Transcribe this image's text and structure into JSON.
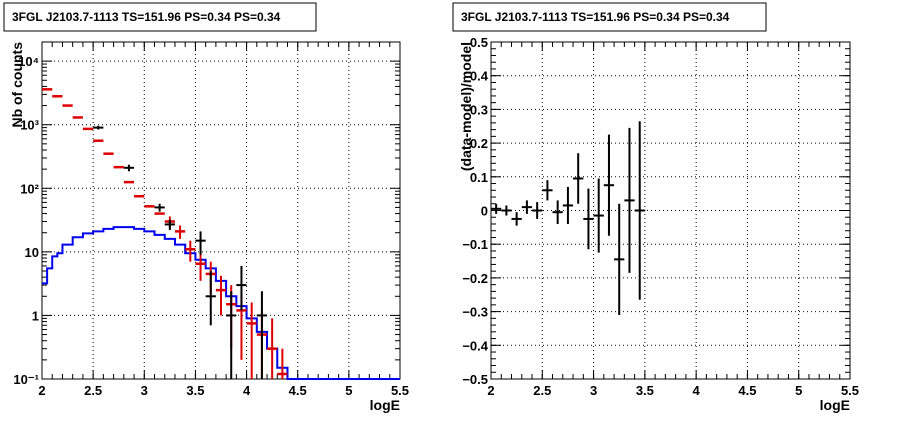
{
  "panels": [
    {
      "title": "3FGL J2103.7-1113 TS=151.96 PS=0.34 PS=0.34"
    },
    {
      "title": "3FGL J2103.7-1113 TS=151.96 PS=0.34 PS=0.34"
    }
  ],
  "chart_data": [
    {
      "type": "line",
      "title": "3FGL J2103.7-1113 TS=151.96 PS=0.34 PS=0.34",
      "xlabel": "logE",
      "ylabel": "Nb of counts",
      "xlim": [
        2,
        5.5
      ],
      "ylim": [
        0.1,
        20000
      ],
      "yscale": "log",
      "grid": true,
      "xticks": [
        "2",
        "2.5",
        "3",
        "3.5",
        "4",
        "4.5",
        "5",
        "5.5"
      ],
      "yticks": [
        {
          "value": 0.1,
          "label": "10⁻¹"
        },
        {
          "value": 1,
          "label": "1"
        },
        {
          "value": 10,
          "label": "10"
        },
        {
          "value": 100,
          "label": "10²"
        },
        {
          "value": 1000,
          "label": "10³"
        },
        {
          "value": 10000,
          "label": "10⁴"
        }
      ],
      "colors": {
        "data": "#000000",
        "model": "#dd0000",
        "component": "#0000ee"
      },
      "bin_width": 0.1,
      "data_points": [
        {
          "x": 2.55,
          "y": 900,
          "lo": 840,
          "hi": 960
        },
        {
          "x": 2.85,
          "y": 210,
          "lo": 185,
          "hi": 235
        },
        {
          "x": 3.15,
          "y": 50,
          "lo": 43,
          "hi": 57
        },
        {
          "x": 3.25,
          "y": 27,
          "lo": 22,
          "hi": 32
        },
        {
          "x": 3.55,
          "y": 15,
          "lo": 9,
          "hi": 21
        },
        {
          "x": 3.65,
          "y": 2,
          "lo": 0.7,
          "hi": 5
        },
        {
          "x": 3.85,
          "y": 1,
          "lo": 0.1,
          "hi": 2.4
        },
        {
          "x": 3.95,
          "y": 3,
          "lo": 1.2,
          "hi": 6
        },
        {
          "x": 4.15,
          "y": 1,
          "lo": 0.1,
          "hi": 2.4
        }
      ],
      "model": [
        {
          "x": 2.05,
          "y": 3600
        },
        {
          "x": 2.15,
          "y": 2800
        },
        {
          "x": 2.25,
          "y": 2000
        },
        {
          "x": 2.35,
          "y": 1300
        },
        {
          "x": 2.45,
          "y": 860
        },
        {
          "x": 2.55,
          "y": 560
        },
        {
          "x": 2.65,
          "y": 350
        },
        {
          "x": 2.75,
          "y": 215
        },
        {
          "x": 2.85,
          "y": 125
        },
        {
          "x": 2.95,
          "y": 75
        },
        {
          "x": 3.05,
          "y": 52
        },
        {
          "x": 3.15,
          "y": 40
        },
        {
          "x": 3.25,
          "y": 30,
          "lo": 24,
          "hi": 36
        },
        {
          "x": 3.35,
          "y": 21,
          "lo": 16,
          "hi": 26
        },
        {
          "x": 3.45,
          "y": 11,
          "lo": 7,
          "hi": 15
        },
        {
          "x": 3.55,
          "y": 6.5,
          "lo": 3.5,
          "hi": 9.5
        },
        {
          "x": 3.65,
          "y": 4.5,
          "lo": 2.2,
          "hi": 7
        },
        {
          "x": 3.75,
          "y": 2.5,
          "lo": 1,
          "hi": 4.2
        },
        {
          "x": 3.85,
          "y": 1.5,
          "lo": 0.3,
          "hi": 3
        },
        {
          "x": 3.95,
          "y": 1.2,
          "lo": 0.2,
          "hi": 2.4
        },
        {
          "x": 4.05,
          "y": 0.75,
          "lo": 0.1,
          "hi": 1.6
        },
        {
          "x": 4.15,
          "y": 0.5,
          "lo": 0.1,
          "hi": 1.2
        },
        {
          "x": 4.25,
          "y": 0.3,
          "lo": 0.1,
          "hi": 0.9
        },
        {
          "x": 4.35,
          "y": 0.12,
          "lo": 0.1,
          "hi": 0.3
        }
      ],
      "component_histogram": [
        {
          "x": 2.0,
          "y": 3.2
        },
        {
          "x": 2.05,
          "y": 5.5
        },
        {
          "x": 2.1,
          "y": 8.5
        },
        {
          "x": 2.15,
          "y": 9.5
        },
        {
          "x": 2.2,
          "y": 13
        },
        {
          "x": 2.3,
          "y": 17
        },
        {
          "x": 2.4,
          "y": 19.5
        },
        {
          "x": 2.5,
          "y": 21
        },
        {
          "x": 2.6,
          "y": 23
        },
        {
          "x": 2.7,
          "y": 24.5
        },
        {
          "x": 2.9,
          "y": 23
        },
        {
          "x": 3.0,
          "y": 21
        },
        {
          "x": 3.1,
          "y": 18.5
        },
        {
          "x": 3.2,
          "y": 16
        },
        {
          "x": 3.3,
          "y": 13
        },
        {
          "x": 3.4,
          "y": 9.5
        },
        {
          "x": 3.5,
          "y": 7.5
        },
        {
          "x": 3.6,
          "y": 5.5
        },
        {
          "x": 3.7,
          "y": 3.5
        },
        {
          "x": 3.8,
          "y": 2
        },
        {
          "x": 3.9,
          "y": 1.4
        },
        {
          "x": 4.0,
          "y": 0.9
        },
        {
          "x": 4.1,
          "y": 0.55
        },
        {
          "x": 4.2,
          "y": 0.3
        },
        {
          "x": 4.3,
          "y": 0.15
        },
        {
          "x": 4.4,
          "y": 0.1
        },
        {
          "x": 5.5,
          "y": 0.1
        }
      ]
    },
    {
      "type": "scatter",
      "title": "3FGL J2103.7-1113 TS=151.96 PS=0.34 PS=0.34",
      "xlabel": "logE",
      "ylabel": "(data-model)/model",
      "xlim": [
        2,
        5.5
      ],
      "ylim": [
        -0.5,
        0.5
      ],
      "grid": true,
      "xticks": [
        "2",
        "2.5",
        "3",
        "3.5",
        "4",
        "4.5",
        "5",
        "5.5"
      ],
      "yticks": [
        "−0.5",
        "−0.4",
        "−0.3",
        "−0.2",
        "−0.1",
        "0",
        "0.1",
        "0.2",
        "0.3",
        "0.4",
        "0.5"
      ],
      "bin_width": 0.1,
      "points": [
        {
          "x": 2.05,
          "y": 0.005,
          "err": 0.015
        },
        {
          "x": 2.15,
          "y": 0.0,
          "err": 0.015
        },
        {
          "x": 2.25,
          "y": -0.025,
          "err": 0.02
        },
        {
          "x": 2.35,
          "y": 0.01,
          "err": 0.02
        },
        {
          "x": 2.45,
          "y": 0.0,
          "err": 0.025
        },
        {
          "x": 2.55,
          "y": 0.06,
          "err": 0.03
        },
        {
          "x": 2.65,
          "y": -0.005,
          "err": 0.035
        },
        {
          "x": 2.75,
          "y": 0.015,
          "err": 0.055
        },
        {
          "x": 2.85,
          "y": 0.095,
          "err": 0.075
        },
        {
          "x": 2.95,
          "y": -0.025,
          "err": 0.09
        },
        {
          "x": 3.05,
          "y": -0.015,
          "err": 0.11
        },
        {
          "x": 3.15,
          "y": 0.075,
          "err": 0.15
        },
        {
          "x": 3.25,
          "y": -0.145,
          "err": 0.165
        },
        {
          "x": 3.35,
          "y": 0.03,
          "err": 0.215
        },
        {
          "x": 3.45,
          "y": 0.0,
          "err": 0.265
        }
      ]
    }
  ]
}
